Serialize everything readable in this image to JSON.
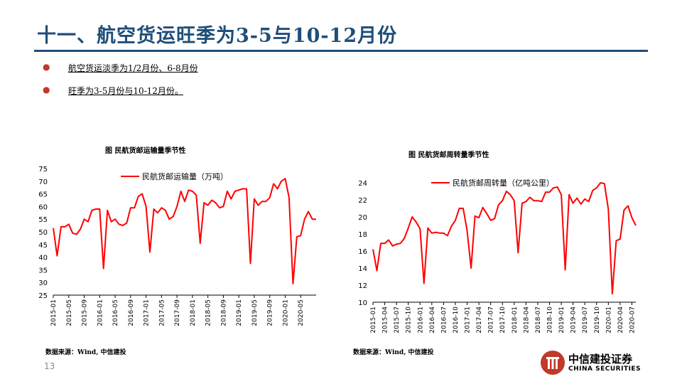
{
  "page": {
    "title": "十一、航空货运旺季为3-5与10-12月份",
    "bullets": [
      "航空货运淡季为1/2月份、6-8月份",
      "旺季为3-5月份与10-12月份。"
    ],
    "page_number": "13",
    "logo": {
      "name_cn": "中信建投证券",
      "name_en": "CHINA SECURITIES",
      "color": "#c0392b"
    }
  },
  "chart_data": [
    {
      "type": "line",
      "title": "图 民航货邮运输量季节性",
      "source": "数据来源：Wind, 中信建投",
      "ylim": [
        25,
        75
      ],
      "yticks": [
        25,
        30,
        35,
        40,
        45,
        50,
        55,
        60,
        65,
        70,
        75
      ],
      "x_tick_labels": [
        "2015-01",
        "2015-05",
        "2015-09",
        "2016-01",
        "2016-05",
        "2016-09",
        "2017-01",
        "2017-05",
        "2017-09",
        "2018-01",
        "2018-05",
        "2018-09",
        "2019-01",
        "2019-05",
        "2019-09",
        "2020-01",
        "2020-05"
      ],
      "x_start": "2015-01",
      "series": [
        {
          "name": "民航货邮运输量（万吨）",
          "color": "#ff0000",
          "values": [
            51.5,
            40.5,
            52,
            52,
            53,
            49.5,
            49,
            51,
            55,
            54,
            58.5,
            59,
            59,
            35.5,
            58.5,
            54,
            55,
            53,
            52.5,
            53.5,
            59.5,
            59.5,
            64,
            65,
            60,
            42,
            59,
            57.5,
            59.5,
            58.5,
            55,
            56,
            60,
            66,
            62,
            66.5,
            66,
            64.5,
            45.5,
            61.5,
            60.5,
            62.5,
            61.5,
            59.5,
            60,
            66,
            63,
            66,
            66.5,
            67,
            67,
            37.5,
            63,
            60.5,
            62,
            62,
            63.5,
            69,
            67,
            70,
            71,
            63.5,
            29.5,
            48,
            48.5,
            55,
            58,
            55,
            55
          ]
        }
      ]
    },
    {
      "type": "line",
      "title": "图 民航货邮周转量季节性",
      "source": "数据来源：Wind, 中信建投",
      "ylim": [
        10,
        24
      ],
      "yticks": [
        10,
        12,
        14,
        16,
        18,
        20,
        22,
        24
      ],
      "x_tick_labels": [
        "2015-01",
        "2015-04",
        "2015-07",
        "2015-10",
        "2016-01",
        "2016-04",
        "2016-07",
        "2016-10",
        "2017-01",
        "2017-04",
        "2017-07",
        "2017-10",
        "2018-01",
        "2018-04",
        "2018-07",
        "2018-10",
        "2019-01",
        "2019-04",
        "2019-07",
        "2019-10",
        "2020-01",
        "2020-04",
        "2020-07"
      ],
      "x_start": "2015-01",
      "series": [
        {
          "name": "民航货邮周转量（亿吨公里）",
          "color": "#ff0000",
          "values": [
            16.2,
            13.7,
            16.9,
            16.9,
            17.3,
            16.6,
            16.8,
            16.9,
            17.5,
            18.7,
            20,
            19.4,
            18.6,
            12.2,
            18.7,
            18.1,
            18.2,
            18.1,
            18.1,
            17.8,
            18.9,
            19.6,
            21,
            21,
            18.4,
            14,
            20.1,
            19.9,
            21.1,
            20.4,
            19.6,
            19.8,
            21.4,
            21.9,
            23,
            22.6,
            21.9,
            15.8,
            21.6,
            21.8,
            22.3,
            21.9,
            21.9,
            21.8,
            22.9,
            22.9,
            23.4,
            23.5,
            22.6,
            13.8,
            22.6,
            21.6,
            22.2,
            21.5,
            22.1,
            21.8,
            23.1,
            23.4,
            24,
            23.9,
            20.9,
            11,
            17.2,
            17.4,
            20.8,
            21.3,
            19.9,
            19
          ]
        }
      ]
    }
  ]
}
